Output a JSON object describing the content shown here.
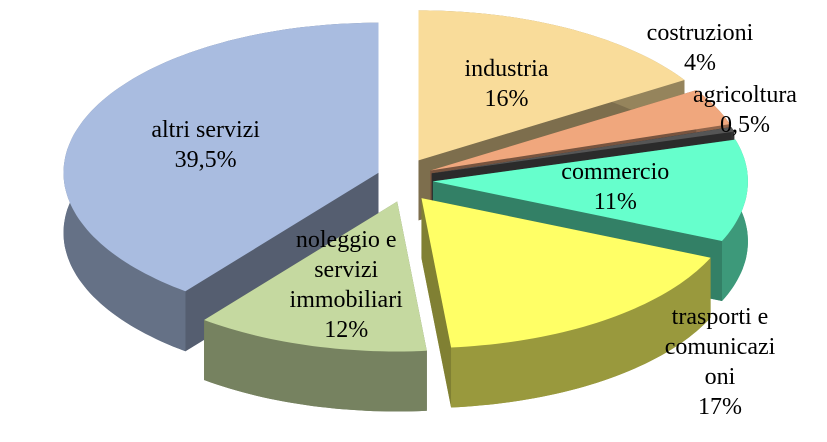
{
  "chart_data": {
    "type": "pie",
    "categories": [
      "industria",
      "costruzioni",
      "agricoltura",
      "commercio",
      "trasporti e comunicazioni",
      "noleggio e servizi immobiliari",
      "altri servizi"
    ],
    "values": [
      16,
      4,
      0.5,
      11,
      17,
      12,
      39.5
    ],
    "value_labels": [
      "16%",
      "4%",
      "0,5%",
      "11%",
      "17%",
      "12%",
      "39,5%"
    ],
    "colors": [
      "#f9dc9a",
      "#f0a77d",
      "#555555",
      "#66ffcc",
      "#ffff66",
      "#c5d9a0",
      "#a9bce0"
    ]
  }
}
